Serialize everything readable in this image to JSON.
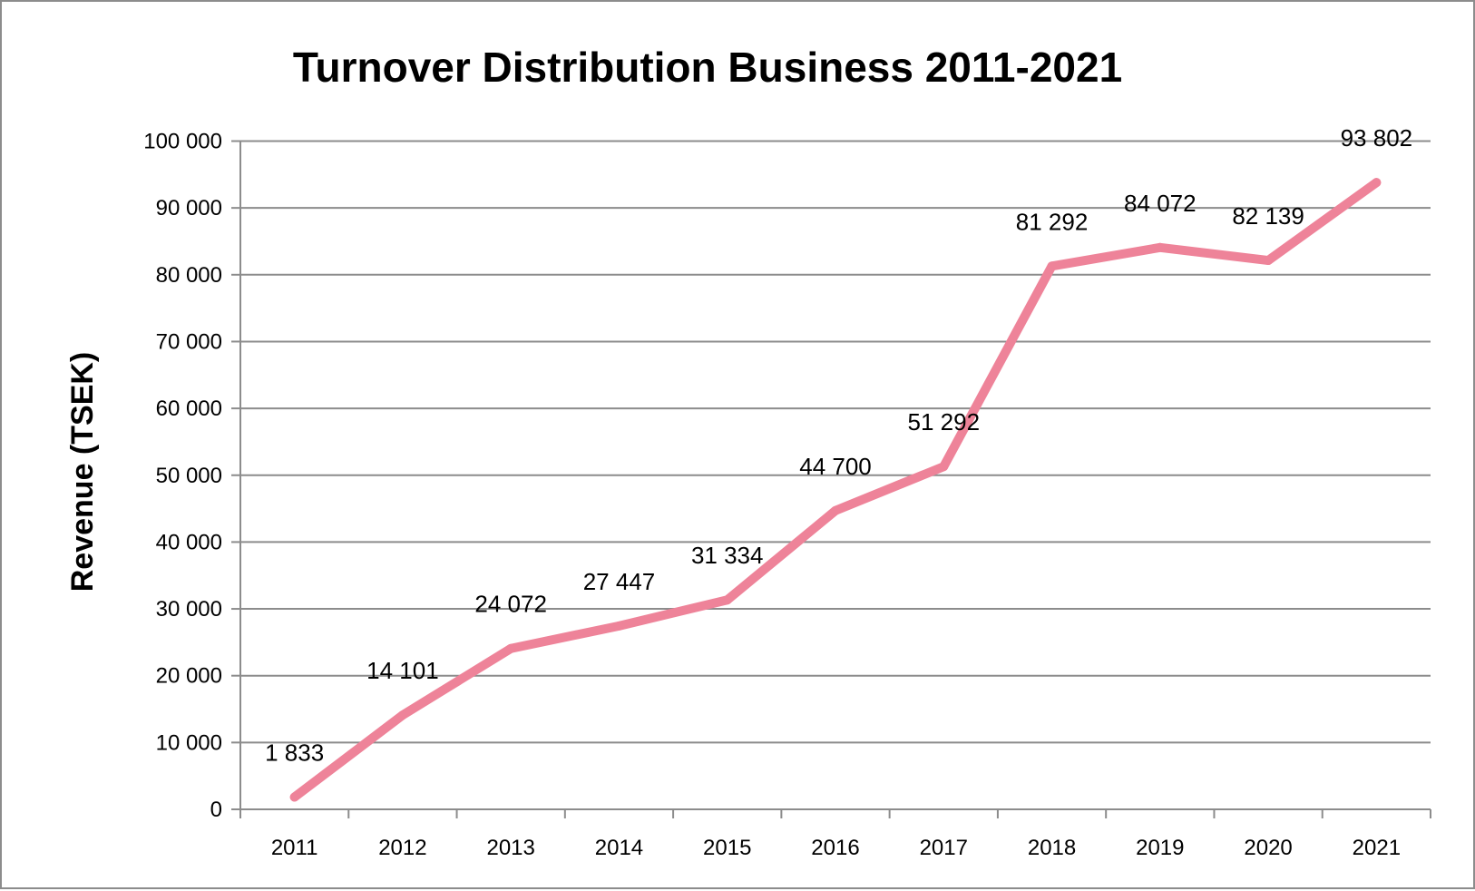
{
  "chart_data": {
    "type": "line",
    "title": "Turnover Distribution Business 2011-2021",
    "xlabel": "",
    "ylabel": "Revenue (TSEK)",
    "categories": [
      "2011",
      "2012",
      "2013",
      "2014",
      "2015",
      "2016",
      "2017",
      "2018",
      "2019",
      "2020",
      "2021"
    ],
    "values": [
      1833,
      14101,
      24072,
      27447,
      31334,
      44700,
      51292,
      81292,
      84072,
      82139,
      93802
    ],
    "data_labels": [
      "1 833",
      "14 101",
      "24 072",
      "27 447",
      "31 334",
      "44 700",
      "51 292",
      "81 292",
      "84 072",
      "82 139",
      "93 802"
    ],
    "ylim": [
      0,
      100000
    ],
    "yticks": [
      "0",
      "10 000",
      "20 000",
      "30 000",
      "40 000",
      "50 000",
      "60 000",
      "70 000",
      "80 000",
      "90 000",
      "100 000"
    ],
    "grid": true,
    "legend": "none",
    "colors": {
      "line": "#EE8399",
      "grid": "#8c8c8c"
    }
  }
}
